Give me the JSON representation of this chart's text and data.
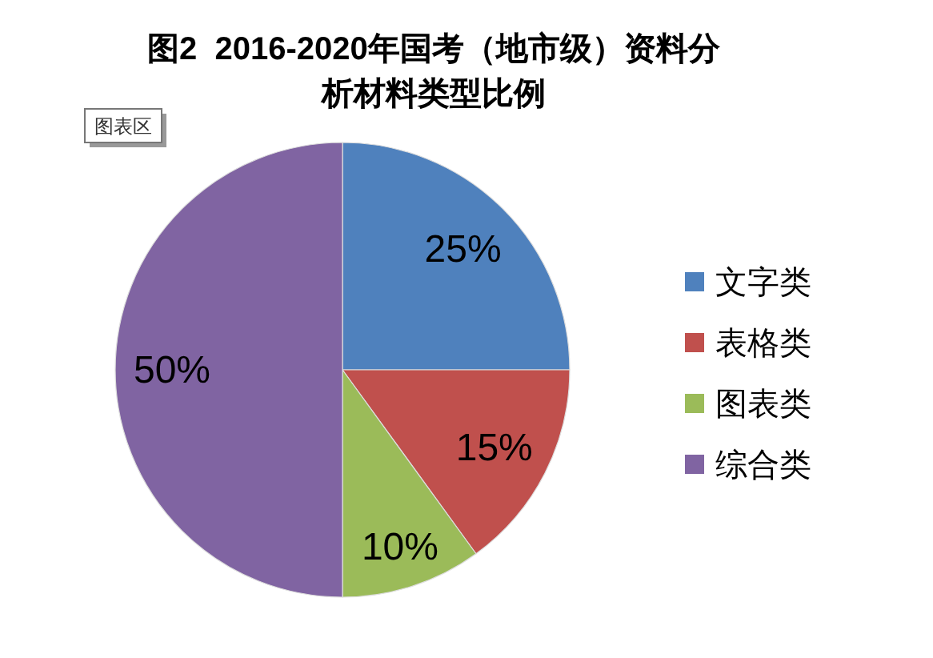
{
  "chart_data": {
    "type": "pie",
    "title": "图2  2016-2020年国考（地市级）资料分析材料类型比例",
    "categories": [
      "文字类",
      "表格类",
      "图表类",
      "综合类"
    ],
    "values": [
      25,
      15,
      10,
      50
    ],
    "colors": [
      "#4f81bd",
      "#c0504d",
      "#9bbb59",
      "#8064a2"
    ],
    "value_labels": [
      "25%",
      "15%",
      "10%",
      "50%"
    ],
    "legend": "right",
    "annotations": [
      "图表区"
    ]
  }
}
